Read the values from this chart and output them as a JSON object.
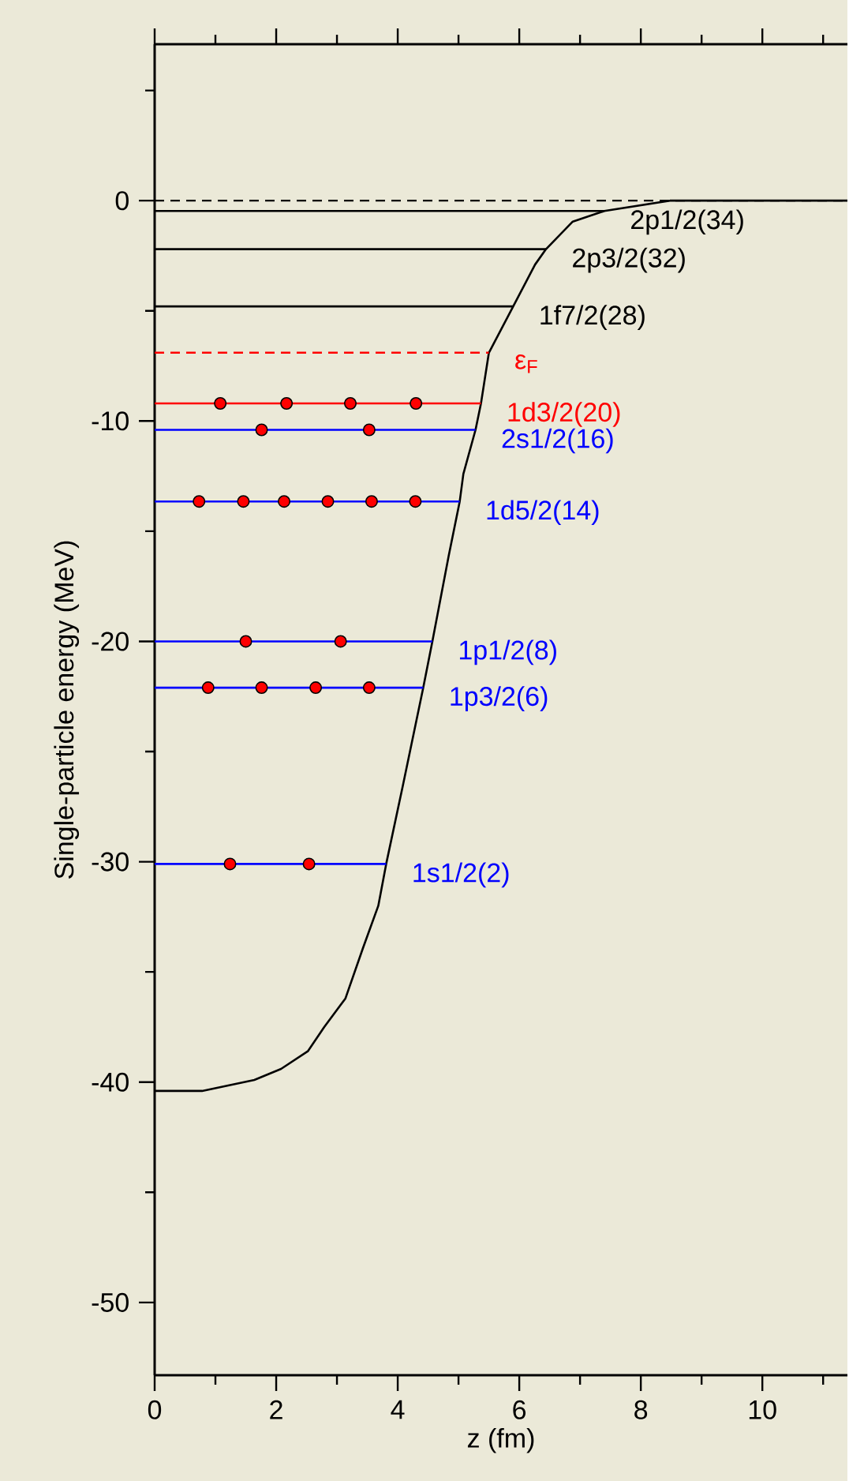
{
  "chart_data": {
    "type": "line",
    "xlabel": "z (fm)",
    "ylabel": "Single-particle energy (MeV)",
    "xlim": [
      0,
      11.4
    ],
    "ylim": [
      -53.3,
      7.1
    ],
    "xticks": [
      0,
      {
        "value": 1,
        "label": null
      },
      2,
      {
        "value": 3,
        "label": null
      },
      4,
      {
        "value": 5,
        "label": null
      },
      6,
      {
        "value": 7,
        "label": null
      },
      8,
      {
        "value": 9,
        "label": null
      },
      10,
      {
        "value": 11,
        "label": null
      }
    ],
    "yticks": [
      {
        "value": 5,
        "label": null
      },
      0,
      {
        "value": -5,
        "label": null
      },
      -10,
      {
        "value": -15,
        "label": null
      },
      -20,
      {
        "value": -25,
        "label": null
      },
      -30,
      {
        "value": -35,
        "label": null
      },
      -40,
      {
        "value": -45,
        "label": null
      },
      -50
    ],
    "ref_lines": [
      {
        "axis": "y",
        "value": 0,
        "color": "#000000",
        "line_style": "dashed"
      }
    ],
    "series": [
      {
        "type": "line",
        "color": "#000000",
        "x": [
          0,
          0.78,
          1.64,
          2.08,
          2.52,
          2.79,
          3.14,
          3.43,
          3.68,
          3.81,
          4.08,
          4.42,
          4.57,
          4.84,
          5.02,
          5.08,
          5.28,
          5.37,
          5.5,
          5.9,
          6.26,
          6.44,
          6.88,
          7.4,
          8.48,
          11.4
        ],
        "values": [
          -40.4,
          -40.4,
          -39.9,
          -39.4,
          -38.6,
          -37.5,
          -36.2,
          -33.9,
          -32.0,
          -30.1,
          -26.6,
          -22.1,
          -20.0,
          -16.1,
          -13.65,
          -12.4,
          -10.4,
          -9.2,
          -6.9,
          -4.8,
          -2.9,
          -2.2,
          -0.95,
          -0.47,
          0,
          0
        ]
      },
      {
        "type": "line",
        "name": "2p1/2(34)",
        "color": "#000000",
        "x": [
          0,
          7.4
        ],
        "values": [
          -0.47,
          -0.47
        ]
      },
      {
        "type": "line",
        "name": "2p3/2(32)",
        "color": "#000000",
        "x": [
          0,
          6.44
        ],
        "values": [
          -2.2,
          -2.2
        ]
      },
      {
        "type": "line",
        "name": "1f7/2(28)",
        "color": "#000000",
        "x": [
          0,
          5.9
        ],
        "values": [
          -4.8,
          -4.8
        ]
      },
      {
        "type": "line",
        "name": "ε$_{F}$",
        "color": "#ff0000",
        "line_style": "dashed",
        "x": [
          0,
          5.5
        ],
        "values": [
          -6.9,
          -6.9
        ]
      },
      {
        "type": "line",
        "name": "1d3/2(20)",
        "color": "#ff0000",
        "x": [
          0,
          5.37
        ],
        "values": [
          -9.2,
          -9.2
        ]
      },
      {
        "type": "line",
        "name": "2s1/2(16)",
        "color": "#0000ff",
        "x": [
          0,
          5.28
        ],
        "values": [
          -10.4,
          -10.4
        ]
      },
      {
        "type": "line",
        "name": "1d5/2(14)",
        "color": "#0000ff",
        "x": [
          0,
          5.02
        ],
        "values": [
          -13.65,
          -13.65
        ]
      },
      {
        "type": "line",
        "name": "1p1/2(8)",
        "color": "#0000ff",
        "x": [
          0,
          4.57
        ],
        "values": [
          -20.0,
          -20.0
        ]
      },
      {
        "type": "line",
        "name": "1p3/2(6)",
        "color": "#0000ff",
        "x": [
          0,
          4.42
        ],
        "values": [
          -22.1,
          -22.1
        ]
      },
      {
        "type": "line",
        "name": "1s1/2(2)",
        "color": "#0000ff",
        "x": [
          0,
          3.81
        ],
        "values": [
          -30.1,
          -30.1
        ]
      },
      {
        "type": "scatter",
        "color": "#ff0000",
        "marker": "circle",
        "x": [
          1.08,
          2.17,
          3.22,
          4.3
        ],
        "values": [
          -9.2,
          -9.2,
          -9.2,
          -9.2
        ]
      },
      {
        "type": "scatter",
        "color": "#ff0000",
        "marker": "circle",
        "x": [
          1.76,
          3.53
        ],
        "values": [
          -10.4,
          -10.4
        ]
      },
      {
        "type": "scatter",
        "color": "#ff0000",
        "marker": "circle",
        "x": [
          0.73,
          1.46,
          2.13,
          2.85,
          3.57,
          4.29
        ],
        "values": [
          -13.65,
          -13.65,
          -13.65,
          -13.65,
          -13.65,
          -13.65
        ]
      },
      {
        "type": "scatter",
        "color": "#ff0000",
        "marker": "circle",
        "x": [
          1.5,
          3.06
        ],
        "values": [
          -20.0,
          -20.0
        ]
      },
      {
        "type": "scatter",
        "color": "#ff0000",
        "marker": "circle",
        "x": [
          0.88,
          1.76,
          2.65,
          3.53
        ],
        "values": [
          -22.1,
          -22.1,
          -22.1,
          -22.1
        ]
      },
      {
        "type": "scatter",
        "color": "#ff0000",
        "marker": "circle",
        "x": [
          1.24,
          2.54
        ],
        "values": [
          -30.1,
          -30.1
        ]
      }
    ]
  }
}
